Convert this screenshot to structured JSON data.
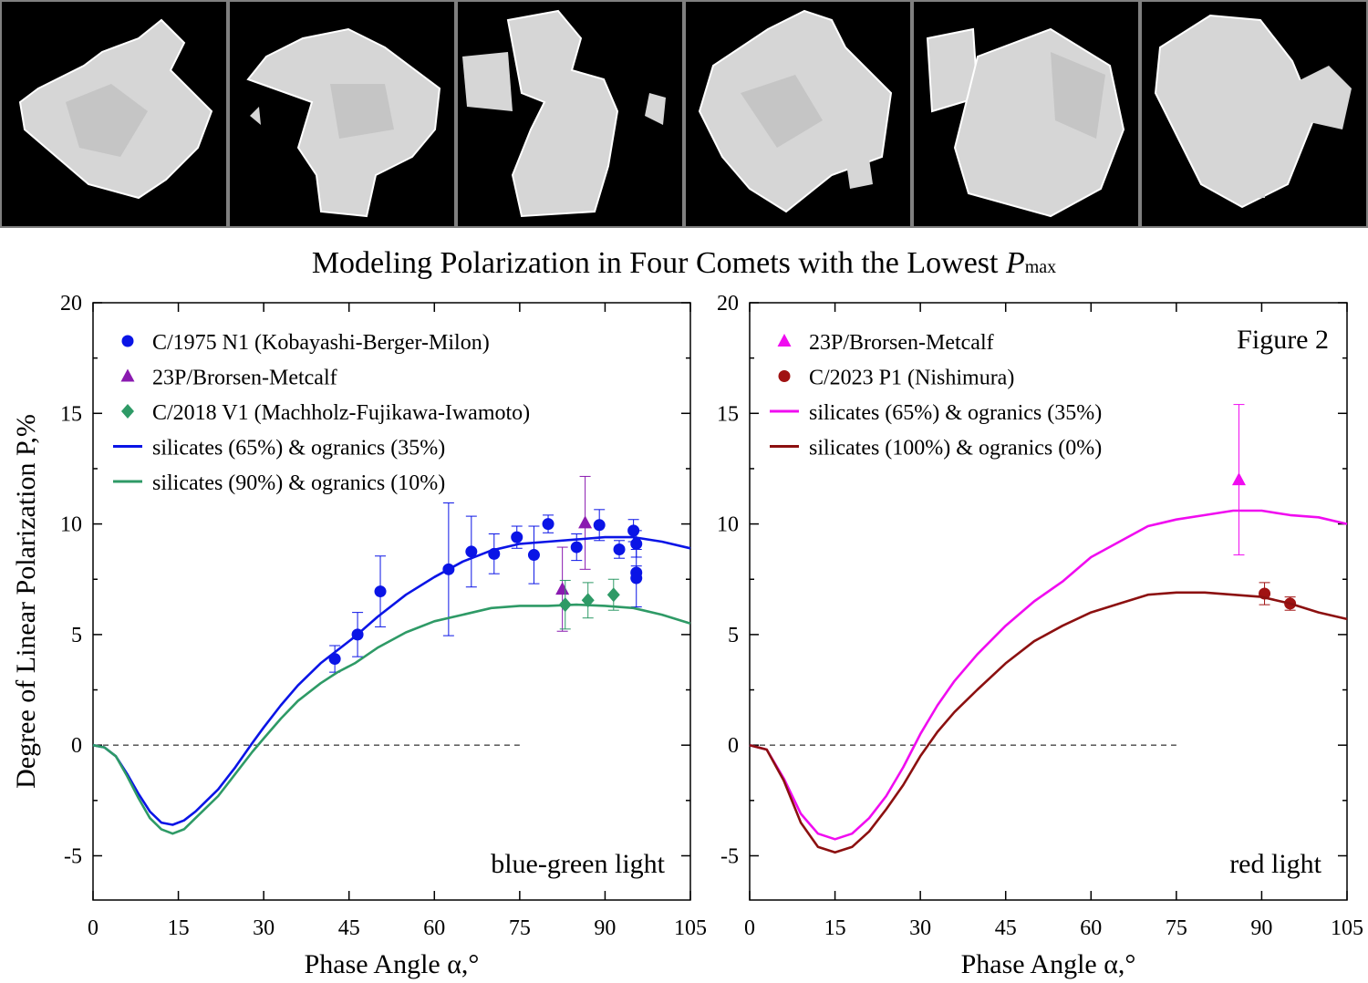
{
  "title_main": "Modeling Polarization in Four Comets with the Lowest ",
  "title_var": "P",
  "title_sub": "max",
  "strip": {
    "tiles": 6,
    "description_icon": "particle-render-icon"
  },
  "chart_data": [
    {
      "type": "scatter",
      "xlabel": "Phase Angle α,°",
      "ylabel": "Degree of Linear Polarization P,%",
      "xlim": [
        0,
        105
      ],
      "ylim": [
        -7,
        20
      ],
      "xticks": [
        0,
        15,
        30,
        45,
        60,
        75,
        90,
        105
      ],
      "yticks": [
        -5,
        0,
        5,
        10,
        15,
        20
      ],
      "legend": "top-left",
      "corner_label": "blue-green light",
      "series": [
        {
          "name": "C/1975 N1 (Kobayashi-Berger-Milon)",
          "kind": "points",
          "marker": "circle",
          "color": "#0a14e6",
          "points": [
            {
              "x": 42.5,
              "y": 3.9,
              "lo": 3.3,
              "hi": 4.5
            },
            {
              "x": 46.5,
              "y": 5.0,
              "lo": 4.0,
              "hi": 6.0
            },
            {
              "x": 50.5,
              "y": 6.95,
              "lo": 5.35,
              "hi": 8.55
            },
            {
              "x": 62.5,
              "y": 7.95,
              "lo": 4.95,
              "hi": 10.95
            },
            {
              "x": 66.5,
              "y": 8.75,
              "lo": 7.15,
              "hi": 10.35
            },
            {
              "x": 70.5,
              "y": 8.65,
              "lo": 7.75,
              "hi": 9.55
            },
            {
              "x": 74.5,
              "y": 9.4,
              "lo": 8.9,
              "hi": 9.9
            },
            {
              "x": 77.5,
              "y": 8.6,
              "lo": 7.3,
              "hi": 9.9
            },
            {
              "x": 80.0,
              "y": 10.0,
              "lo": 9.6,
              "hi": 10.4
            },
            {
              "x": 85.0,
              "y": 8.95,
              "lo": 8.35,
              "hi": 9.55
            },
            {
              "x": 89.0,
              "y": 9.95,
              "lo": 9.25,
              "hi": 10.65
            },
            {
              "x": 92.5,
              "y": 8.85,
              "lo": 8.45,
              "hi": 9.25
            },
            {
              "x": 95.0,
              "y": 9.7,
              "lo": 9.2,
              "hi": 10.2
            },
            {
              "x": 95.5,
              "y": 9.1,
              "lo": 8.5,
              "hi": 9.7
            },
            {
              "x": 95.5,
              "y": 7.8,
              "lo": 7.5,
              "hi": 8.1
            },
            {
              "x": 95.5,
              "y": 7.55,
              "lo": 6.25,
              "hi": 8.85
            }
          ]
        },
        {
          "name": "23P/Brorsen-Metcalf",
          "kind": "points",
          "marker": "triangle",
          "color": "#8a1ab0",
          "points": [
            {
              "x": 82.5,
              "y": 7.05,
              "lo": 5.15,
              "hi": 8.95
            },
            {
              "x": 86.5,
              "y": 10.05,
              "lo": 7.95,
              "hi": 12.15
            }
          ]
        },
        {
          "name": "C/2018 V1 (Machholz-Fujikawa-Iwamoto)",
          "kind": "points",
          "marker": "diamond",
          "color": "#2e9a66",
          "points": [
            {
              "x": 83.0,
              "y": 6.35,
              "lo": 5.25,
              "hi": 7.45
            },
            {
              "x": 87.0,
              "y": 6.55,
              "lo": 5.75,
              "hi": 7.35
            },
            {
              "x": 91.5,
              "y": 6.8,
              "lo": 6.1,
              "hi": 7.5
            }
          ]
        },
        {
          "name": "silicates (65%) & ogranics (35%)",
          "kind": "line",
          "color": "#0a14e6",
          "x": [
            0,
            2,
            4,
            6,
            8,
            10,
            12,
            14,
            16,
            18,
            20,
            22,
            25,
            28,
            30,
            33,
            36,
            40,
            43,
            46,
            50,
            55,
            60,
            65,
            70,
            75,
            80,
            85,
            90,
            95,
            100,
            105
          ],
          "y": [
            0,
            -0.1,
            -0.5,
            -1.3,
            -2.2,
            -3.0,
            -3.5,
            -3.6,
            -3.4,
            -3.0,
            -2.5,
            -2.0,
            -1.0,
            0.1,
            0.8,
            1.8,
            2.7,
            3.7,
            4.3,
            4.9,
            5.8,
            6.8,
            7.6,
            8.3,
            8.8,
            9.1,
            9.2,
            9.3,
            9.4,
            9.4,
            9.2,
            8.9
          ]
        },
        {
          "name": "silicates (90%) & ogranics (10%)",
          "kind": "line",
          "color": "#2e9a66",
          "x": [
            0,
            2,
            4,
            6,
            8,
            10,
            12,
            14,
            16,
            18,
            20,
            22,
            25,
            28,
            30,
            33,
            36,
            40,
            43,
            46,
            50,
            55,
            60,
            65,
            70,
            75,
            80,
            85,
            90,
            95,
            100,
            105
          ],
          "y": [
            0,
            -0.1,
            -0.5,
            -1.4,
            -2.4,
            -3.3,
            -3.8,
            -4.0,
            -3.8,
            -3.3,
            -2.8,
            -2.3,
            -1.3,
            -0.3,
            0.3,
            1.2,
            2.0,
            2.8,
            3.3,
            3.7,
            4.4,
            5.1,
            5.6,
            5.9,
            6.2,
            6.3,
            6.3,
            6.35,
            6.3,
            6.2,
            5.9,
            5.5
          ]
        }
      ]
    },
    {
      "type": "scatter",
      "xlabel": "Phase Angle α,°",
      "ylabel": "",
      "xlim": [
        0,
        105
      ],
      "ylim": [
        -7,
        20
      ],
      "xticks": [
        0,
        15,
        30,
        45,
        60,
        75,
        90,
        105
      ],
      "yticks": [
        -5,
        0,
        5,
        10,
        15,
        20
      ],
      "legend": "top-left",
      "figure_label": "Figure 2",
      "corner_label": "red light",
      "series": [
        {
          "name": "23P/Brorsen-Metcalf",
          "kind": "points",
          "marker": "triangle",
          "color": "#f00cf0",
          "points": [
            {
              "x": 86.0,
              "y": 12.0,
              "lo": 8.6,
              "hi": 15.4
            }
          ]
        },
        {
          "name": "C/2023 P1 (Nishimura)",
          "kind": "points",
          "marker": "circle",
          "color": "#a01212",
          "points": [
            {
              "x": 90.5,
              "y": 6.85,
              "lo": 6.35,
              "hi": 7.35
            },
            {
              "x": 95.0,
              "y": 6.4,
              "lo": 6.1,
              "hi": 6.7
            }
          ]
        },
        {
          "name": "silicates (65%) & ogranics (35%)",
          "kind": "line",
          "color": "#f00cf0",
          "x": [
            0,
            3,
            6,
            9,
            12,
            15,
            18,
            21,
            24,
            27,
            30,
            33,
            36,
            40,
            45,
            50,
            55,
            60,
            65,
            70,
            75,
            80,
            85,
            90,
            95,
            100,
            105
          ],
          "y": [
            0,
            -0.2,
            -1.5,
            -3.1,
            -4.0,
            -4.25,
            -4.0,
            -3.3,
            -2.3,
            -1.0,
            0.5,
            1.8,
            2.9,
            4.1,
            5.4,
            6.5,
            7.4,
            8.5,
            9.2,
            9.9,
            10.2,
            10.4,
            10.6,
            10.6,
            10.4,
            10.3,
            10.0
          ]
        },
        {
          "name": "silicates (100%) & ogranics (0%)",
          "kind": "line",
          "color": "#8c1010",
          "x": [
            0,
            3,
            6,
            9,
            12,
            15,
            18,
            21,
            24,
            27,
            30,
            33,
            36,
            40,
            45,
            50,
            55,
            60,
            65,
            70,
            75,
            80,
            85,
            90,
            95,
            100,
            105
          ],
          "y": [
            0,
            -0.2,
            -1.6,
            -3.5,
            -4.6,
            -4.85,
            -4.6,
            -3.9,
            -2.9,
            -1.8,
            -0.5,
            0.6,
            1.5,
            2.5,
            3.7,
            4.7,
            5.4,
            6.0,
            6.4,
            6.8,
            6.9,
            6.9,
            6.8,
            6.7,
            6.4,
            6.0,
            5.7
          ]
        }
      ]
    }
  ]
}
